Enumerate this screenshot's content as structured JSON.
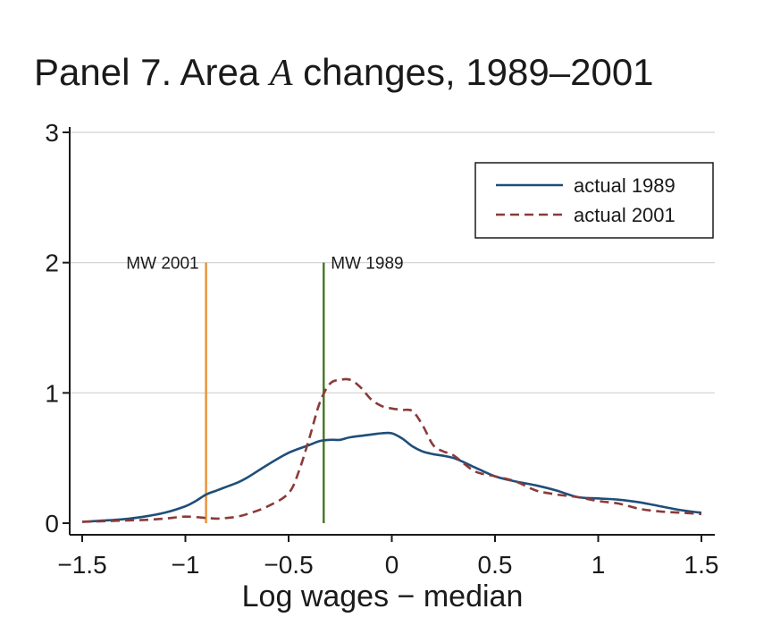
{
  "chart_data": {
    "type": "line",
    "title_prefix": "Panel 7. Area ",
    "title_var": "A",
    "title_suffix": " changes, 1989–2001",
    "xlabel": "Log wages − median",
    "ylabel": "",
    "xlim": [
      -1.5,
      1.5
    ],
    "ylim": [
      0,
      3
    ],
    "x_ticks": [
      -1.5,
      -1,
      -0.5,
      0,
      0.5,
      1,
      1.5
    ],
    "x_tick_labels": [
      "−1.5",
      "−1",
      "−0.5",
      "0",
      "0.5",
      "1",
      "1.5"
    ],
    "y_ticks": [
      0,
      1,
      2,
      3
    ],
    "y_tick_labels": [
      "0",
      "1",
      "2",
      "3"
    ],
    "grid": true,
    "legend_position": "top-right",
    "series": [
      {
        "name": "actual 1989",
        "color": "#1f4e79",
        "style": "solid",
        "x": [
          -1.5,
          -1.4,
          -1.3,
          -1.2,
          -1.1,
          -1.0,
          -0.95,
          -0.9,
          -0.85,
          -0.8,
          -0.75,
          -0.7,
          -0.6,
          -0.5,
          -0.4,
          -0.35,
          -0.3,
          -0.25,
          -0.2,
          -0.1,
          -0.05,
          0.0,
          0.05,
          0.1,
          0.15,
          0.2,
          0.3,
          0.4,
          0.5,
          0.6,
          0.7,
          0.8,
          0.9,
          1.0,
          1.1,
          1.2,
          1.3,
          1.4,
          1.5
        ],
        "values": [
          0.01,
          0.02,
          0.03,
          0.05,
          0.08,
          0.13,
          0.17,
          0.22,
          0.25,
          0.28,
          0.31,
          0.35,
          0.45,
          0.54,
          0.6,
          0.63,
          0.64,
          0.64,
          0.66,
          0.68,
          0.69,
          0.69,
          0.65,
          0.59,
          0.55,
          0.53,
          0.5,
          0.43,
          0.36,
          0.32,
          0.29,
          0.25,
          0.2,
          0.19,
          0.18,
          0.16,
          0.13,
          0.1,
          0.08
        ]
      },
      {
        "name": "actual 2001",
        "color": "#8b3a3a",
        "style": "dashed",
        "x": [
          -1.5,
          -1.4,
          -1.3,
          -1.2,
          -1.1,
          -1.0,
          -0.9,
          -0.85,
          -0.8,
          -0.75,
          -0.7,
          -0.6,
          -0.5,
          -0.45,
          -0.4,
          -0.35,
          -0.3,
          -0.25,
          -0.2,
          -0.15,
          -0.1,
          -0.05,
          0.0,
          0.05,
          0.1,
          0.15,
          0.2,
          0.25,
          0.3,
          0.4,
          0.5,
          0.6,
          0.7,
          0.8,
          0.9,
          1.0,
          1.1,
          1.2,
          1.3,
          1.4,
          1.5
        ],
        "values": [
          0.01,
          0.015,
          0.02,
          0.025,
          0.035,
          0.05,
          0.04,
          0.035,
          0.04,
          0.05,
          0.07,
          0.13,
          0.23,
          0.4,
          0.65,
          0.92,
          1.07,
          1.1,
          1.1,
          1.04,
          0.95,
          0.9,
          0.88,
          0.87,
          0.86,
          0.75,
          0.6,
          0.55,
          0.52,
          0.4,
          0.36,
          0.32,
          0.25,
          0.22,
          0.2,
          0.17,
          0.15,
          0.11,
          0.09,
          0.08,
          0.07
        ]
      }
    ],
    "vlines": [
      {
        "label": "MW 2001",
        "x": -0.9,
        "ymax": 2,
        "color": "#e8943a",
        "label_side": "left"
      },
      {
        "label": "MW 1989",
        "x": -0.33,
        "ymax": 2,
        "color": "#4a7a2a",
        "label_side": "right"
      }
    ]
  }
}
